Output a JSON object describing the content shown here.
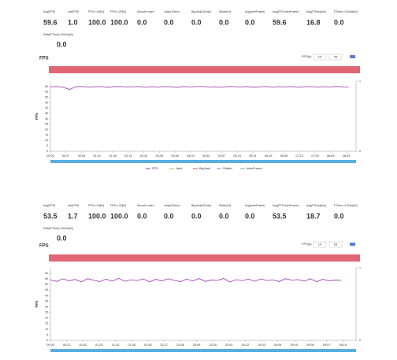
{
  "panels": [
    {
      "metrics": [
        {
          "label": "Avg(FPS)",
          "value": "59.6"
        },
        {
          "label": "Var(FPS)",
          "value": "1.0"
        },
        {
          "label": "FPS>=18[%]",
          "value": "100.0"
        },
        {
          "label": "FPS>=25[%]",
          "value": "100.0"
        },
        {
          "label": "Smooth Index",
          "value": "0.0"
        },
        {
          "label": "Jank(/10min)",
          "value": "0.0"
        },
        {
          "label": "BigJank(/10min)",
          "value": "0.0"
        },
        {
          "label": "Stutter[%]",
          "value": "0.0"
        },
        {
          "label": "Avg(InterFrame)",
          "value": "0.0"
        },
        {
          "label": "Avg(FPS-InterFrame)",
          "value": "59.6"
        },
        {
          "label": "Avg(FTime)[ms]",
          "value": "16.8"
        },
        {
          "label": "FTime>=100ms[%]",
          "value": "0.0"
        }
      ],
      "extra": {
        "label": "Delta(FTime)>100ms[/h]",
        "value": "0.0"
      },
      "chart": {
        "type": "line",
        "title": "FPS",
        "ylabel": "FPS",
        "control": {
          "label": "FPS(s)",
          "inputs": [
            "10",
            "25"
          ]
        },
        "ylim": [
          0,
          65
        ],
        "yticks": [
          0,
          5,
          10,
          15,
          20,
          25,
          30,
          35,
          40,
          45,
          50,
          55,
          60
        ],
        "y2lim": [
          0,
          1
        ],
        "y2ticks": [
          0,
          1
        ],
        "xlim": [
          0,
          530
        ],
        "xticks": [
          {
            "value": 0,
            "label": "00:00"
          },
          {
            "value": 27,
            "label": "00:27"
          },
          {
            "value": 54,
            "label": "00:54"
          },
          {
            "value": 81,
            "label": "01:21"
          },
          {
            "value": 108,
            "label": "01:48"
          },
          {
            "value": 135,
            "label": "02:15"
          },
          {
            "value": 162,
            "label": "02:42"
          },
          {
            "value": 189,
            "label": "03:09"
          },
          {
            "value": 216,
            "label": "03:36"
          },
          {
            "value": 243,
            "label": "04:03"
          },
          {
            "value": 270,
            "label": "04:30"
          },
          {
            "value": 297,
            "label": "04:57"
          },
          {
            "value": 324,
            "label": "05:24"
          },
          {
            "value": 351,
            "label": "05:51"
          },
          {
            "value": 378,
            "label": "06:18"
          },
          {
            "value": 405,
            "label": "06:45"
          },
          {
            "value": 432,
            "label": "07:12"
          },
          {
            "value": 459,
            "label": "07:39"
          },
          {
            "value": 486,
            "label": "08:06"
          },
          {
            "value": 513,
            "label": "08:33"
          }
        ],
        "x": [
          0,
          11,
          22,
          33,
          44,
          55,
          66,
          77,
          88,
          99,
          110,
          121,
          132,
          143,
          154,
          165,
          176,
          187,
          198,
          209,
          220,
          231,
          242,
          253,
          264,
          275,
          286,
          297,
          308,
          319,
          330,
          341,
          352,
          363,
          374,
          385,
          396,
          407,
          418,
          429,
          440,
          451,
          462,
          473,
          484,
          495,
          506,
          517
        ],
        "series": [
          {
            "name": "FPS",
            "color": "#9b2fae",
            "values": [
              59.8,
              60,
              59.5,
              57.2,
              59.9,
              60,
              59.6,
              59.8,
              60,
              59.4,
              59.9,
              60,
              59.7,
              59.8,
              60,
              59.5,
              59.9,
              59.6,
              60,
              59.8,
              59.3,
              60,
              59.7,
              59.9,
              60,
              59.6,
              59.8,
              59.5,
              60,
              59.9,
              59.7,
              60,
              59.4,
              59.8,
              60,
              59.6,
              59.9,
              59.7,
              60,
              59.5,
              59.8,
              60,
              59.6,
              59.9,
              59.7,
              60,
              59.8,
              59.6
            ]
          }
        ],
        "legend": [
          {
            "name": "FPS",
            "color": "#9b2fae"
          },
          {
            "name": "Jank",
            "color": "#e8a24a"
          },
          {
            "name": "BigJank",
            "color": "#d9534f"
          },
          {
            "name": "Stutter",
            "color": "#5b9bd5"
          },
          {
            "name": "InterFrame",
            "color": "#6cb86c"
          }
        ]
      }
    },
    {
      "metrics": [
        {
          "label": "Avg(FPS)",
          "value": "53.5"
        },
        {
          "label": "Var(FPS)",
          "value": "1.7"
        },
        {
          "label": "FPS>=18[%]",
          "value": "100.0"
        },
        {
          "label": "FPS>=25[%]",
          "value": "100.0"
        },
        {
          "label": "Smooth Index",
          "value": "0.0"
        },
        {
          "label": "Jank(/10min)",
          "value": "0.0"
        },
        {
          "label": "BigJank(/10min)",
          "value": "0.0"
        },
        {
          "label": "Stutter[%]",
          "value": "0.0"
        },
        {
          "label": "Avg(InterFrame)",
          "value": "0.0"
        },
        {
          "label": "Avg(FPS-InterFrame)",
          "value": "53.5"
        },
        {
          "label": "Avg(FTime)[ms]",
          "value": "18.7"
        },
        {
          "label": "FTime>=100ms[%]",
          "value": "0.0"
        }
      ],
      "extra": {
        "label": "Delta(FTime)>100ms[/h]",
        "value": "0.0"
      },
      "chart": {
        "type": "line",
        "title": "FPS",
        "ylabel": "FPS",
        "control": {
          "label": "FPS(s)",
          "inputs": [
            "10",
            "25"
          ]
        },
        "ylim": [
          0,
          65
        ],
        "yticks": [
          0,
          5,
          10,
          15,
          20,
          25,
          30,
          35,
          40,
          45,
          50,
          55,
          60
        ],
        "y2lim": [
          0,
          1
        ],
        "y2ticks": [
          0,
          1
        ],
        "xlim": [
          0,
          395
        ],
        "xticks": [
          {
            "value": 0,
            "label": "00:00"
          },
          {
            "value": 21,
            "label": "00:21"
          },
          {
            "value": 42,
            "label": "00:42"
          },
          {
            "value": 63,
            "label": "01:03"
          },
          {
            "value": 84,
            "label": "01:24"
          },
          {
            "value": 105,
            "label": "01:45"
          },
          {
            "value": 126,
            "label": "02:06"
          },
          {
            "value": 147,
            "label": "02:27"
          },
          {
            "value": 168,
            "label": "02:48"
          },
          {
            "value": 189,
            "label": "03:09"
          },
          {
            "value": 210,
            "label": "03:30"
          },
          {
            "value": 231,
            "label": "03:51"
          },
          {
            "value": 252,
            "label": "04:12"
          },
          {
            "value": 273,
            "label": "04:33"
          },
          {
            "value": 294,
            "label": "04:54"
          },
          {
            "value": 315,
            "label": "05:15"
          },
          {
            "value": 336,
            "label": "05:36"
          },
          {
            "value": 357,
            "label": "05:57"
          },
          {
            "value": 378,
            "label": "06:18"
          }
        ],
        "x": [
          0,
          8,
          16,
          24,
          32,
          40,
          48,
          56,
          64,
          72,
          80,
          88,
          96,
          104,
          112,
          120,
          128,
          136,
          144,
          152,
          160,
          168,
          176,
          184,
          192,
          200,
          208,
          216,
          224,
          232,
          240,
          248,
          256,
          264,
          272,
          280,
          288,
          296,
          304,
          312,
          320,
          328,
          336,
          344,
          352,
          360,
          368,
          376
        ],
        "series": [
          {
            "name": "FPS",
            "color": "#9b2fae",
            "values": [
              54.2,
              52.8,
              55.1,
              53.4,
              54.6,
              52.5,
              55.3,
              53.9,
              52.7,
              54.8,
              53.1,
              55.6,
              52.9,
              54.3,
              53.6,
              55.0,
              52.4,
              54.7,
              53.3,
              55.2,
              53.8,
              52.6,
              54.9,
              53.2,
              55.4,
              52.8,
              54.1,
              53.7,
              55.5,
              52.3,
              54.4,
              53.5,
              54.9,
              52.9,
              55.1,
              53.6,
              54.2,
              52.7,
              55.3,
              53.9,
              54.5,
              53.0,
              55.2,
              52.6,
              54.7,
              53.4,
              54.0,
              53.8
            ]
          }
        ],
        "legend": []
      }
    }
  ]
}
